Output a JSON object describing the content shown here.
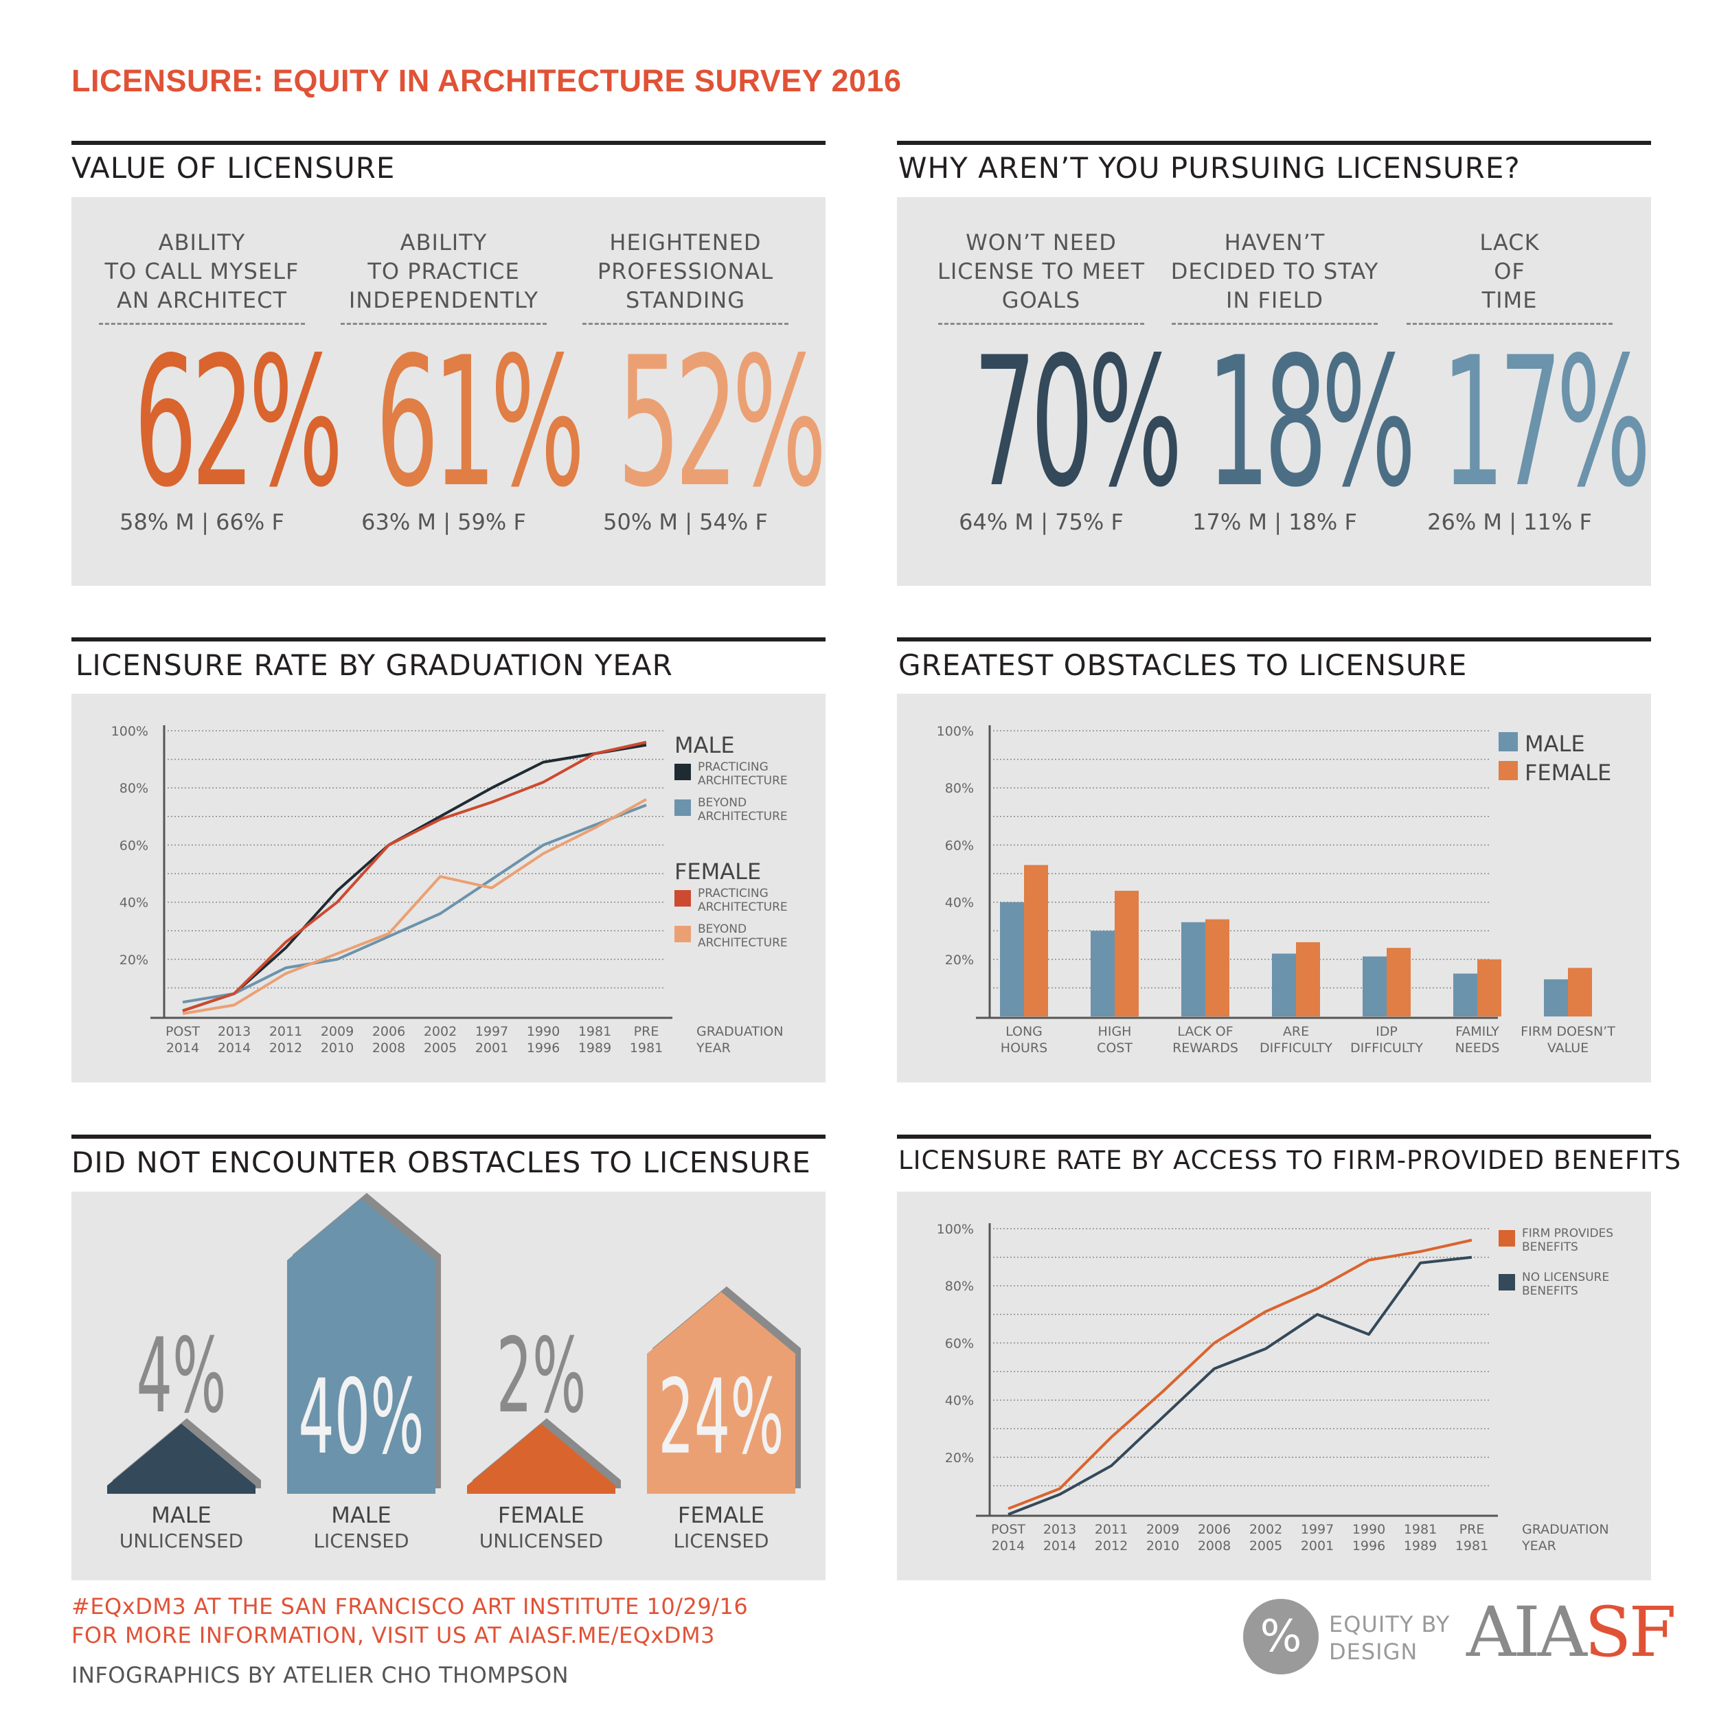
{
  "title": "LICENSURE: EQUITY IN ARCHITECTURE SURVEY 2016",
  "sections": {
    "value": "VALUE OF LICENSURE",
    "why_not": "WHY AREN’T YOU PURSUING LICENSURE?",
    "rate_by_year": "LICENSURE RATE BY GRADUATION YEAR",
    "obstacles": "GREATEST OBSTACLES TO LICENSURE",
    "no_obstacles": "DID NOT ENCOUNTER OBSTACLES TO LICENSURE",
    "benefits": "LICENSURE RATE BY ACCESS TO FIRM-PROVIDED BENEFITS"
  },
  "value_stats": [
    {
      "label1": "ABILITY",
      "label2": "TO CALL MYSELF",
      "label3": "AN ARCHITECT",
      "value": "62%",
      "split": "58% M | 66% F",
      "color": "#d9642e"
    },
    {
      "label1": "ABILITY",
      "label2": "TO PRACTICE",
      "label3": "INDEPENDENTLY",
      "value": "61%",
      "split": "63% M | 59% F",
      "color": "#e07e45"
    },
    {
      "label1": "HEIGHTENED",
      "label2": "PROFESSIONAL",
      "label3": "STANDING",
      "value": "52%",
      "split": "50% M | 54% F",
      "color": "#eba073"
    }
  ],
  "why_stats": [
    {
      "label1": "WON’T NEED",
      "label2": "LICENSE TO MEET",
      "label3": "GOALS",
      "value": "70%",
      "split": "64% M | 75% F",
      "color": "#34495a"
    },
    {
      "label1": "HAVEN’T",
      "label2": "DECIDED TO STAY",
      "label3": "IN FIELD",
      "value": "18%",
      "split": "17% M | 18% F",
      "color": "#4b6e85"
    },
    {
      "label1": "LACK",
      "label2": "OF",
      "label3": "TIME",
      "value": "17%",
      "split": "26% M | 11% F",
      "color": "#6b93ab"
    }
  ],
  "y_ticks": [
    "100%",
    "80%",
    "60%",
    "40%",
    "20%"
  ],
  "chart_data": [
    {
      "type": "line",
      "title": "LICENSURE RATE BY GRADUATION YEAR",
      "categories": [
        [
          "POST",
          "2014"
        ],
        [
          "2013",
          "2014"
        ],
        [
          "2011",
          "2012"
        ],
        [
          "2009",
          "2010"
        ],
        [
          "2006",
          "2008"
        ],
        [
          "2002",
          "2005"
        ],
        [
          "1997",
          "2001"
        ],
        [
          "1990",
          "1996"
        ],
        [
          "1981",
          "1989"
        ],
        [
          "PRE",
          "1981"
        ]
      ],
      "xlabel": [
        "GRADUATION",
        "YEAR"
      ],
      "ylim": [
        0,
        100
      ],
      "legend_groups": [
        {
          "title": "MALE",
          "items": [
            [
              "PRACTICING",
              "ARCHITECTURE"
            ],
            [
              "BEYOND",
              "ARCHITECTURE"
            ]
          ]
        },
        {
          "title": "FEMALE",
          "items": [
            [
              "PRACTICING",
              "ARCHITECTURE"
            ],
            [
              "BEYOND",
              "ARCHITECTURE"
            ]
          ]
        }
      ],
      "series": [
        {
          "group": "MALE",
          "color": "#1f2b33",
          "values": [
            2,
            8,
            24,
            44,
            60,
            70,
            80,
            89,
            92,
            95
          ]
        },
        {
          "group": "MALE",
          "color": "#6b93ab",
          "values": [
            5,
            8,
            17,
            20,
            28,
            36,
            48,
            60,
            67,
            74
          ]
        },
        {
          "group": "FEMALE",
          "color": "#cc4a30",
          "values": [
            2,
            8,
            26,
            40,
            60,
            69,
            75,
            82,
            92,
            96
          ]
        },
        {
          "group": "FEMALE",
          "color": "#eba073",
          "values": [
            1,
            4,
            15,
            22,
            29,
            49,
            45,
            57,
            66,
            76
          ]
        }
      ]
    },
    {
      "type": "bar",
      "title": "GREATEST OBSTACLES TO LICENSURE",
      "categories": [
        [
          "LONG",
          "HOURS"
        ],
        [
          "HIGH",
          "COST"
        ],
        [
          "LACK OF",
          "REWARDS"
        ],
        [
          "ARE",
          "DIFFICULTY"
        ],
        [
          "IDP",
          "DIFFICULTY"
        ],
        [
          "FAMILY",
          "NEEDS"
        ],
        [
          "FIRM DOESN’T",
          "VALUE"
        ]
      ],
      "ylim": [
        0,
        100
      ],
      "series": [
        {
          "name": "MALE",
          "color": "#6b93ab",
          "values": [
            40,
            30,
            33,
            22,
            21,
            15,
            13
          ]
        },
        {
          "name": "FEMALE",
          "color": "#e07e45",
          "values": [
            53,
            44,
            34,
            26,
            24,
            20,
            17
          ]
        }
      ]
    },
    {
      "type": "line",
      "title": "LICENSURE RATE BY ACCESS TO FIRM-PROVIDED BENEFITS",
      "categories": [
        [
          "POST",
          "2014"
        ],
        [
          "2013",
          "2014"
        ],
        [
          "2011",
          "2012"
        ],
        [
          "2009",
          "2010"
        ],
        [
          "2006",
          "2008"
        ],
        [
          "2002",
          "2005"
        ],
        [
          "1997",
          "2001"
        ],
        [
          "1990",
          "1996"
        ],
        [
          "1981",
          "1989"
        ],
        [
          "PRE",
          "1981"
        ]
      ],
      "xlabel": [
        "GRADUATION",
        "YEAR"
      ],
      "ylim": [
        0,
        100
      ],
      "series": [
        {
          "name": [
            "FIRM PROVIDES",
            "BENEFITS"
          ],
          "color": "#d9642e",
          "values": [
            2,
            9,
            27,
            43,
            60,
            71,
            79,
            89,
            92,
            96
          ]
        },
        {
          "name": [
            "NO LICENSURE",
            "BENEFITS"
          ],
          "color": "#34495a",
          "values": [
            0,
            7,
            17,
            34,
            51,
            58,
            70,
            63,
            88,
            90
          ]
        }
      ]
    },
    {
      "type": "bar",
      "title": "DID NOT ENCOUNTER OBSTACLES TO LICENSURE",
      "categories": [
        [
          "MALE",
          "UNLICENSED"
        ],
        [
          "MALE",
          "LICENSED"
        ],
        [
          "FEMALE",
          "UNLICENSED"
        ],
        [
          "FEMALE",
          "LICENSED"
        ]
      ],
      "values": [
        4,
        40,
        2,
        24
      ],
      "labels": [
        "4%",
        "40%",
        "2%",
        "24%"
      ],
      "colors": [
        "#34495a",
        "#6b93ab",
        "#d9642e",
        "#eba073"
      ]
    }
  ],
  "footer": {
    "line1": "#EQxDM3 AT THE SAN FRANCISCO ART INSTITUTE 10/29/16",
    "line2": "FOR MORE INFORMATION, VISIT US AT AIASF.ME/EQxDM3",
    "credit": "INFOGRAPHICS BY ATELIER CHO THOMPSON",
    "logo1_symbol": "%",
    "logo1_text1": "EQUITY BY",
    "logo1_text2": "DESIGN",
    "logo2_a": "AIA",
    "logo2_b": "SF"
  }
}
